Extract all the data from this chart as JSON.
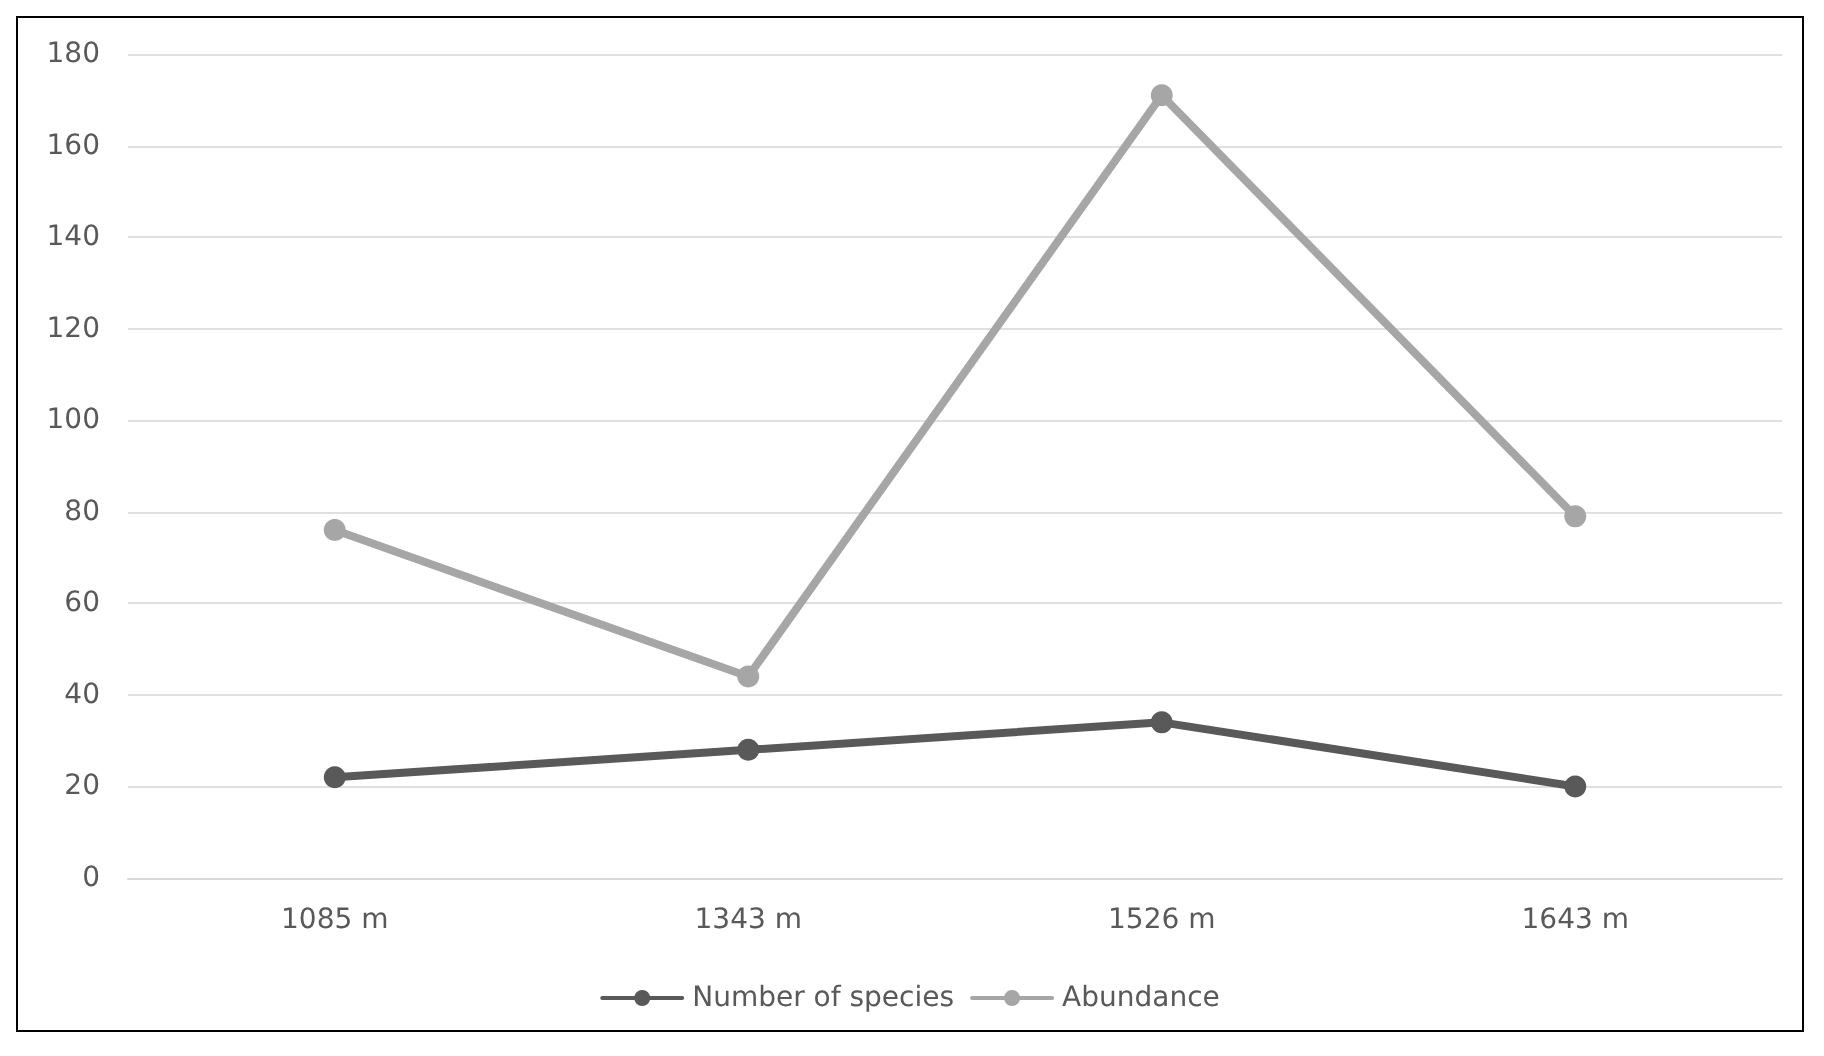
{
  "chart_data": {
    "type": "line",
    "categories": [
      "1085 m",
      "1343 m",
      "1526 m",
      "1643 m"
    ],
    "series": [
      {
        "name": "Number of species",
        "color": "#595959",
        "values": [
          22,
          28,
          34,
          20
        ]
      },
      {
        "name": "Abundance",
        "color": "#a6a6a6",
        "values": [
          76,
          44,
          171,
          79
        ]
      }
    ],
    "ylim": [
      0,
      180
    ],
    "yticks": [
      0,
      20,
      40,
      60,
      80,
      100,
      120,
      140,
      160,
      180
    ],
    "grid": "y",
    "legend": "bottom",
    "marker": "circle",
    "line_style": "solid"
  }
}
